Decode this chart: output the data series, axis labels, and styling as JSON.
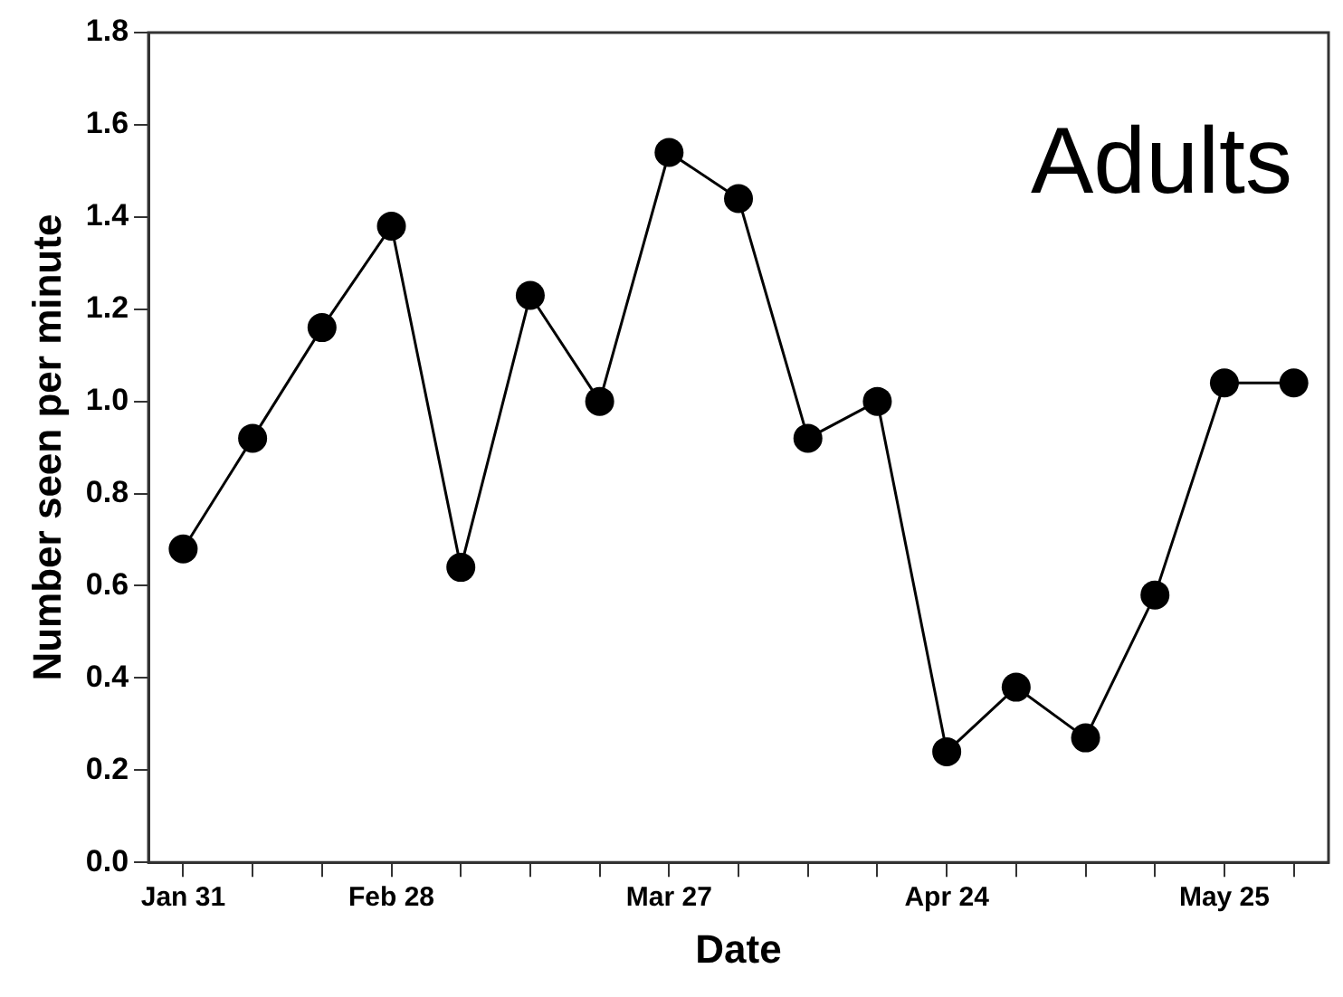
{
  "chart_data": {
    "type": "line",
    "xlabel": "Date",
    "ylabel": "Number seen per minute",
    "annotations": [
      "Adults"
    ],
    "categories": [
      "Jan 31",
      null,
      null,
      "Feb 28",
      null,
      null,
      null,
      "Mar 27",
      null,
      null,
      null,
      "Apr 24",
      null,
      null,
      null,
      "May 25",
      null
    ],
    "series": [
      {
        "color": "#000000",
        "values": [
          0.68,
          0.92,
          1.16,
          1.38,
          0.64,
          1.23,
          1.0,
          1.54,
          1.44,
          0.92,
          1.0,
          0.24,
          0.38,
          0.27,
          0.58,
          1.04,
          1.04
        ]
      }
    ],
    "ylim": [
      0,
      1.8
    ],
    "yticks": [
      {
        "value": 0,
        "label": "0.0"
      },
      {
        "value": 0.2,
        "label": "0.2"
      },
      {
        "value": 0.4,
        "label": "0.4"
      },
      {
        "value": 0.6,
        "label": "0.6"
      },
      {
        "value": 0.8,
        "label": "0.8"
      },
      {
        "value": 1,
        "label": "1.0"
      },
      {
        "value": 1.2,
        "label": "1.2"
      },
      {
        "value": 1.4,
        "label": "1.4"
      },
      {
        "value": 1.6,
        "label": "1.6"
      },
      {
        "value": 1.8,
        "label": "1.8"
      }
    ],
    "grid": false,
    "legend": false,
    "marker": "circle",
    "line_style": "solid"
  }
}
